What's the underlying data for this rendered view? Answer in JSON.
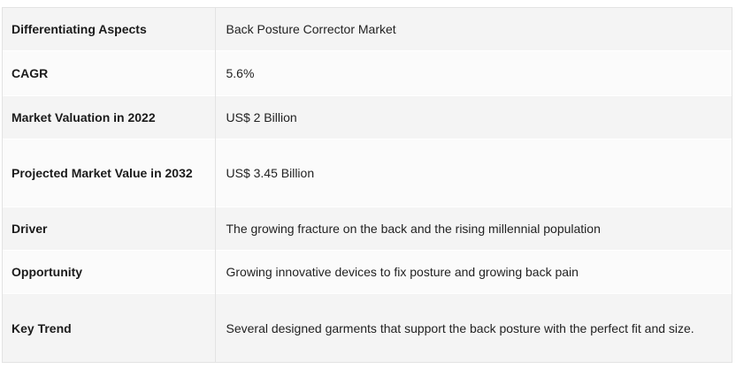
{
  "table": {
    "rows": [
      {
        "aspect": "Differentiating Aspects",
        "value": "Back Posture Corrector Market"
      },
      {
        "aspect": "CAGR",
        "value": "5.6%"
      },
      {
        "aspect": "Market Valuation in 2022",
        "value": "US$ 2 Billion"
      },
      {
        "aspect": "Projected Market Value in 2032",
        "value": "US$ 3.45 Billion"
      },
      {
        "aspect": "Driver",
        "value": "The growing fracture on the back and the rising millennial population"
      },
      {
        "aspect": "Opportunity",
        "value": "Growing innovative devices to fix posture and growing back pain"
      },
      {
        "aspect": "Key Trend",
        "value": "Several designed garments that support the back posture with the perfect fit and size."
      }
    ]
  }
}
